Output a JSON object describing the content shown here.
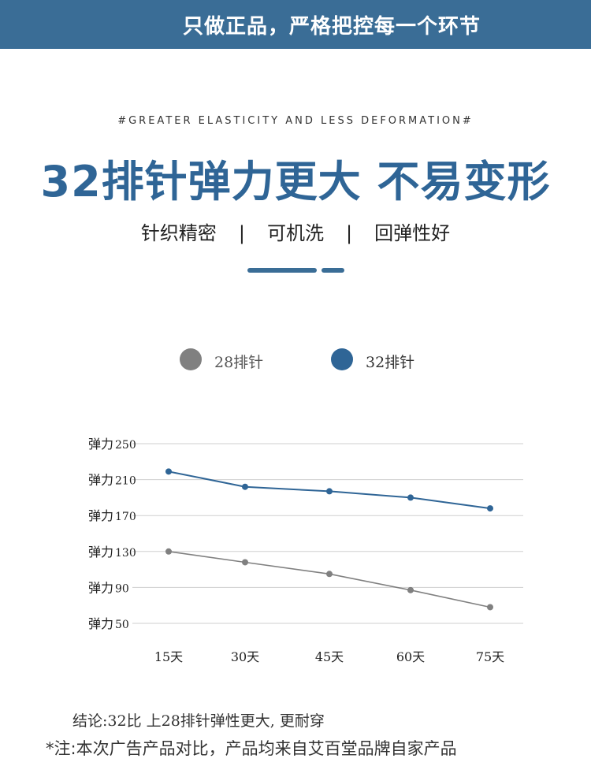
{
  "banner": {
    "text": "只做正品，严格把控每一个环节"
  },
  "header": {
    "subtitle_en": "#GREATER ELASTICITY AND LESS DEFORMATION#",
    "headline": "32排针弹力更大  不易变形",
    "features": [
      "针织精密",
      "可机洗",
      "回弹性好"
    ],
    "separator": "|"
  },
  "colors": {
    "accent": "#2f6596",
    "banner": "#3a6d96",
    "series_28": "#808080",
    "series_32": "#2f6596"
  },
  "chart_data": {
    "type": "line",
    "categories": [
      "15天",
      "30天",
      "45天",
      "60天",
      "75天"
    ],
    "ylim": [
      50,
      250
    ],
    "yticks": [
      250,
      210,
      170,
      130,
      90,
      50
    ],
    "ytick_prefix": "弹力",
    "grid": true,
    "legend_position": "top",
    "series": [
      {
        "name": "28排针",
        "color": "#808080",
        "values": [
          130,
          118,
          105,
          87,
          68
        ]
      },
      {
        "name": "32排针",
        "color": "#2f6596",
        "values": [
          219,
          202,
          197,
          190,
          178
        ]
      }
    ]
  },
  "footer": {
    "conclusion": "结论:32比 上28排针弹性更大, 更耐穿",
    "disclaimer": "*注:本次广告产品对比，产品均来自艾百堂品牌自家产品"
  }
}
